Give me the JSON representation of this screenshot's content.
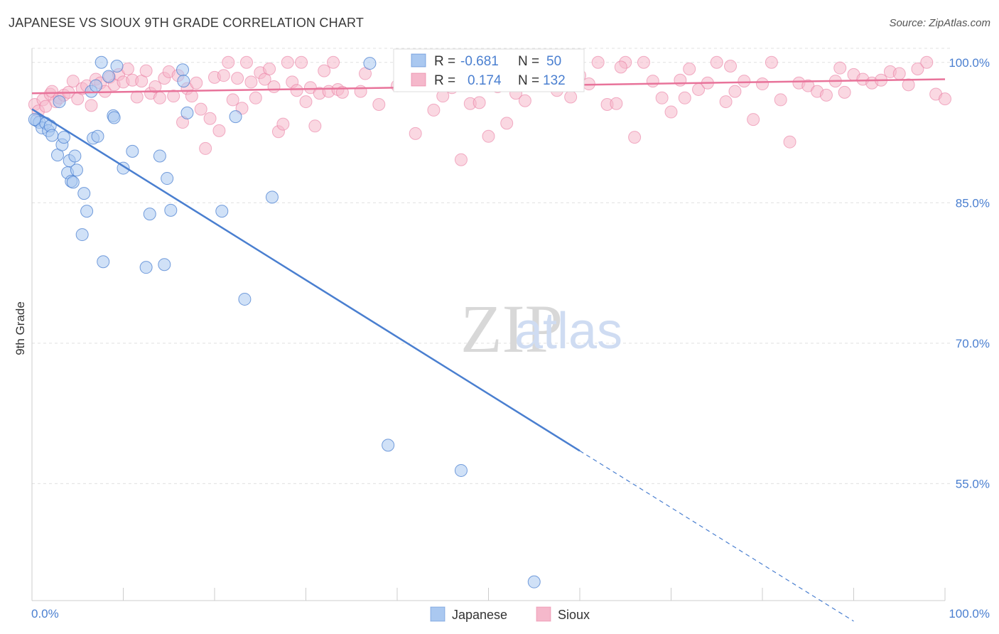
{
  "title": "JAPANESE VS SIOUX 9TH GRADE CORRELATION CHART",
  "source": "Source: ZipAtlas.com",
  "colors": {
    "japanese": "#4a7fd0",
    "sioux": "#e8739a",
    "japanese_fill": "#aac8f0",
    "sioux_fill": "#f5b8cb",
    "tick": "#4a7fd0",
    "grid": "#e0e0e0"
  },
  "chart_data": {
    "type": "scatter",
    "title": "JAPANESE VS SIOUX 9TH GRADE CORRELATION CHART",
    "xlabel": "",
    "ylabel": "9th Grade",
    "xlim": [
      0,
      100
    ],
    "ylim": [
      42.5,
      101.5
    ],
    "x_tick_labels": [
      "0.0%",
      "100.0%"
    ],
    "y_ticks": [
      55,
      70,
      85,
      100
    ],
    "y_tick_labels": [
      "55.0%",
      "70.0%",
      "85.0%",
      "100.0%"
    ],
    "grid": true,
    "legend": {
      "placement": "top-center",
      "entries": [
        {
          "series": "Japanese",
          "r_label": "R =",
          "r_value": "-0.681",
          "n_label": "N =",
          "n_value": "50"
        },
        {
          "series": "Sioux",
          "r_label": "R =",
          "r_value": "0.174",
          "n_label": "N =",
          "n_value": "132"
        }
      ]
    },
    "bottom_legend": [
      "Japanese",
      "Sioux"
    ],
    "watermark": "ZIPatlas",
    "series": [
      {
        "name": "Japanese",
        "trend": {
          "x0": 0,
          "y0": 95.0,
          "x1": 60,
          "y1": 58.5,
          "dashed_to_x": 90,
          "dashed_to_y": 40.3
        },
        "points": [
          [
            0.5,
            93.8
          ],
          [
            0.8,
            93.6
          ],
          [
            1.1,
            93.0
          ],
          [
            1.5,
            93.5
          ],
          [
            1.8,
            92.7
          ],
          [
            2.0,
            93.2
          ],
          [
            2.2,
            92.2
          ],
          [
            2.8,
            90.1
          ],
          [
            3.0,
            95.8
          ],
          [
            3.3,
            91.2
          ],
          [
            3.5,
            92.0
          ],
          [
            3.9,
            88.2
          ],
          [
            4.1,
            89.5
          ],
          [
            4.3,
            87.3
          ],
          [
            4.5,
            87.2
          ],
          [
            4.7,
            90.0
          ],
          [
            4.9,
            88.5
          ],
          [
            5.5,
            81.6
          ],
          [
            5.7,
            86.0
          ],
          [
            6.0,
            84.1
          ],
          [
            6.5,
            96.9
          ],
          [
            6.7,
            91.9
          ],
          [
            7.0,
            97.5
          ],
          [
            7.2,
            92.1
          ],
          [
            7.6,
            100.0
          ],
          [
            7.8,
            78.7
          ],
          [
            8.4,
            98.5
          ],
          [
            8.9,
            94.3
          ],
          [
            9.0,
            94.1
          ],
          [
            9.3,
            99.6
          ],
          [
            10.0,
            88.7
          ],
          [
            11.0,
            90.5
          ],
          [
            12.9,
            83.8
          ],
          [
            12.5,
            78.1
          ],
          [
            14.0,
            90.0
          ],
          [
            14.5,
            78.4
          ],
          [
            14.8,
            87.6
          ],
          [
            15.2,
            84.2
          ],
          [
            16.5,
            99.2
          ],
          [
            16.6,
            98.0
          ],
          [
            17.0,
            94.6
          ],
          [
            20.8,
            84.1
          ],
          [
            22.3,
            94.2
          ],
          [
            23.3,
            74.7
          ],
          [
            26.3,
            85.6
          ],
          [
            37.0,
            99.9
          ],
          [
            39.0,
            59.1
          ],
          [
            47.0,
            56.4
          ],
          [
            55.0,
            44.5
          ],
          [
            0.3,
            93.9
          ]
        ]
      },
      {
        "name": "Sioux",
        "trend": {
          "x0": 0,
          "y0": 96.7,
          "x1": 100,
          "y1": 98.2
        },
        "points": [
          [
            0.3,
            95.5
          ],
          [
            0.7,
            94.8
          ],
          [
            1.2,
            96.0
          ],
          [
            1.5,
            95.3
          ],
          [
            2.0,
            96.6
          ],
          [
            2.2,
            96.9
          ],
          [
            2.6,
            95.8
          ],
          [
            3.0,
            96.2
          ],
          [
            3.5,
            96.5
          ],
          [
            4.0,
            96.8
          ],
          [
            4.5,
            98.0
          ],
          [
            5.0,
            96.1
          ],
          [
            5.5,
            97.2
          ],
          [
            6.0,
            97.5
          ],
          [
            6.5,
            95.4
          ],
          [
            7.0,
            98.2
          ],
          [
            7.5,
            97.8
          ],
          [
            8.0,
            96.9
          ],
          [
            8.5,
            98.4
          ],
          [
            9.0,
            97.6
          ],
          [
            9.5,
            98.7
          ],
          [
            10.0,
            97.9
          ],
          [
            10.5,
            99.3
          ],
          [
            11.0,
            98.1
          ],
          [
            11.5,
            96.3
          ],
          [
            12.0,
            98.0
          ],
          [
            12.5,
            99.1
          ],
          [
            13.0,
            96.7
          ],
          [
            13.5,
            97.4
          ],
          [
            14.0,
            96.2
          ],
          [
            14.5,
            98.3
          ],
          [
            15.0,
            99.0
          ],
          [
            15.5,
            96.4
          ],
          [
            16.0,
            98.6
          ],
          [
            16.5,
            93.6
          ],
          [
            17.0,
            97.2
          ],
          [
            17.5,
            96.4
          ],
          [
            18.0,
            97.8
          ],
          [
            18.5,
            95.0
          ],
          [
            19.0,
            90.8
          ],
          [
            19.5,
            94.0
          ],
          [
            20.0,
            98.4
          ],
          [
            20.5,
            92.7
          ],
          [
            21.0,
            98.6
          ],
          [
            21.5,
            100.0
          ],
          [
            22.0,
            96.0
          ],
          [
            22.5,
            98.3
          ],
          [
            23.0,
            95.1
          ],
          [
            23.5,
            100.0
          ],
          [
            24.0,
            97.9
          ],
          [
            24.5,
            96.2
          ],
          [
            25.0,
            98.9
          ],
          [
            25.5,
            98.2
          ],
          [
            26.0,
            99.3
          ],
          [
            26.5,
            97.4
          ],
          [
            27.0,
            92.6
          ],
          [
            27.5,
            93.4
          ],
          [
            28.0,
            100.0
          ],
          [
            28.5,
            97.9
          ],
          [
            29.0,
            97.0
          ],
          [
            29.5,
            100.0
          ],
          [
            30.0,
            95.8
          ],
          [
            30.5,
            97.3
          ],
          [
            31.0,
            93.2
          ],
          [
            31.5,
            96.7
          ],
          [
            32.0,
            99.1
          ],
          [
            32.5,
            96.9
          ],
          [
            33.0,
            100.0
          ],
          [
            33.5,
            97.1
          ],
          [
            34.0,
            96.8
          ],
          [
            36.5,
            98.8
          ],
          [
            41.0,
            98.0
          ],
          [
            43.0,
            99.1
          ],
          [
            44.0,
            94.9
          ],
          [
            45.0,
            96.4
          ],
          [
            46.0,
            97.3
          ],
          [
            46.5,
            97.7
          ],
          [
            48.0,
            95.6
          ],
          [
            49.0,
            95.7
          ],
          [
            50.0,
            92.1
          ],
          [
            51.0,
            97.4
          ],
          [
            52.0,
            93.5
          ],
          [
            53.0,
            96.7
          ],
          [
            54.0,
            95.9
          ],
          [
            55.0,
            100.0
          ],
          [
            56.0,
            98.2
          ],
          [
            57.0,
            98.5
          ],
          [
            58.0,
            98.8
          ],
          [
            59.0,
            96.3
          ],
          [
            60.0,
            98.6
          ],
          [
            61.0,
            97.7
          ],
          [
            62.0,
            100.0
          ],
          [
            63.0,
            95.5
          ],
          [
            64.0,
            95.6
          ],
          [
            65.0,
            100.0
          ],
          [
            66.0,
            92.0
          ],
          [
            67.0,
            100.0
          ],
          [
            68.0,
            98.0
          ],
          [
            69.0,
            96.2
          ],
          [
            70.0,
            94.7
          ],
          [
            71.0,
            98.1
          ],
          [
            72.0,
            99.3
          ],
          [
            73.0,
            97.1
          ],
          [
            74.0,
            97.8
          ],
          [
            75.0,
            100.0
          ],
          [
            76.0,
            95.8
          ],
          [
            77.0,
            96.9
          ],
          [
            78.0,
            98.0
          ],
          [
            79.0,
            93.9
          ],
          [
            80.0,
            97.7
          ],
          [
            81.0,
            100.0
          ],
          [
            82.0,
            96.0
          ],
          [
            83.0,
            91.5
          ],
          [
            84.0,
            97.8
          ],
          [
            85.0,
            97.5
          ],
          [
            86.0,
            96.9
          ],
          [
            87.0,
            96.5
          ],
          [
            88.0,
            98.0
          ],
          [
            89.0,
            96.8
          ],
          [
            90.0,
            98.7
          ],
          [
            91.0,
            98.2
          ],
          [
            92.0,
            97.8
          ],
          [
            93.0,
            98.1
          ],
          [
            94.0,
            99.0
          ],
          [
            95.0,
            98.8
          ],
          [
            96.0,
            97.6
          ],
          [
            97.0,
            99.3
          ],
          [
            98.0,
            100.0
          ],
          [
            99.0,
            96.6
          ],
          [
            100.0,
            96.1
          ],
          [
            36.0,
            96.9
          ],
          [
            38.0,
            95.5
          ],
          [
            40.0,
            97.5
          ],
          [
            42.0,
            92.4
          ],
          [
            47.0,
            89.6
          ],
          [
            49.5,
            99.0
          ],
          [
            53.5,
            99.2
          ],
          [
            57.5,
            97.0
          ],
          [
            64.5,
            99.5
          ],
          [
            71.5,
            96.2
          ],
          [
            76.5,
            99.6
          ],
          [
            88.5,
            99.4
          ]
        ]
      }
    ]
  }
}
